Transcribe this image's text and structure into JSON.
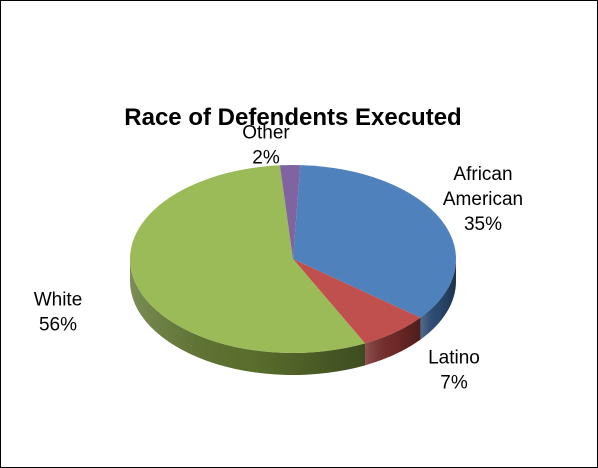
{
  "chart_data": {
    "type": "pie",
    "title": "Race of Defendents Executed",
    "slices": [
      {
        "label": "African American",
        "label_lines": [
          "African",
          "American"
        ],
        "value": 35,
        "display": "35%",
        "color": "#4F81BD",
        "side_color": "#2C4D75"
      },
      {
        "label": "Latino",
        "label_lines": [
          "Latino"
        ],
        "value": 7,
        "display": "7%",
        "color": "#C0504D",
        "side_color": "#772C2A"
      },
      {
        "label": "White",
        "label_lines": [
          "White"
        ],
        "value": 56,
        "display": "56%",
        "color": "#9BBB59",
        "side_color": "#5F7530"
      },
      {
        "label": "Other",
        "label_lines": [
          "Other"
        ],
        "value": 2,
        "display": "2%",
        "color": "#8064A2",
        "side_color": "#4D3B62"
      }
    ],
    "legend": "none",
    "style": "3d"
  }
}
